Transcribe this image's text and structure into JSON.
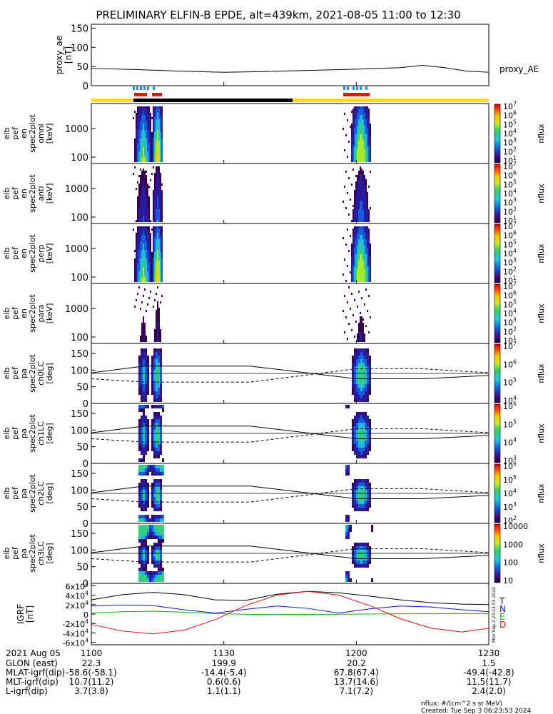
{
  "title": "PRELIMINARY ELFIN-B EPDE, alt=439km, 2021-08-05 11:00 to 12:30",
  "footer": {
    "units": "nflux: #/(cm^2 s sr MeV)",
    "created": "Created: Tue Sep  3 06:23:53 2024",
    "side_stamp": "Mon Sep  2 23:23:53 2024"
  },
  "colors": {
    "ae_line": "#000000",
    "bar_yellow": "#ffdd00",
    "bar_black": "#000000",
    "sci_blue": "#1e90ff",
    "sci_red": "#ee1111",
    "bz_black": "#000000",
    "bx_blue": "#1010dd",
    "by_green": "#10b010",
    "bt_red": "#dd1010"
  },
  "time_axis": {
    "tick_labels": [
      "1100",
      "1130",
      "1200",
      "1230"
    ]
  },
  "info_rows": [
    {
      "label": "2021 Aug 05",
      "values": [
        "1100",
        "1130",
        "1200",
        "1230"
      ]
    },
    {
      "label": "GLON (east)",
      "values": [
        "22.3",
        "199.9",
        "20.2",
        "1.5"
      ]
    },
    {
      "label": "MLAT-igrf(dip)",
      "values": [
        "-58.6(-58.1)",
        "-14.4(-5.4)",
        "67.8(67.4)",
        "-49.4(-42.8)"
      ]
    },
    {
      "label": "MLT-igrf(dip)",
      "values": [
        "10.7(11.2)",
        "0.6(0.6)",
        "13.7(14.6)",
        "11.5(11.7)"
      ]
    },
    {
      "label": "L-igrf(dip)",
      "values": [
        "3.7(3.8)",
        "1.1(1.1)",
        "7.1(7.2)",
        "2.4(2.0)"
      ]
    }
  ],
  "chart_data": [
    {
      "type": "line",
      "panel": "proxy_ae",
      "ylabel": [
        "proxy_ae",
        "[nT]"
      ],
      "legend": "proxy_AE",
      "ylim": [
        0,
        160
      ],
      "yticks": [
        "0",
        "50",
        "100",
        "150"
      ],
      "x_minutes": [
        0,
        10,
        20,
        30,
        40,
        50,
        60,
        70,
        75,
        80,
        85,
        90
      ],
      "values": [
        45,
        42,
        38,
        35,
        37,
        40,
        43,
        47,
        53,
        47,
        38,
        35
      ]
    },
    {
      "type": "heatmap",
      "panel": "en_spec_omni",
      "ylabel": [
        "elb",
        "pef",
        "en",
        "spec2plot",
        "omni",
        "[keV]"
      ],
      "yticks": [
        "100",
        "1000"
      ],
      "zlabel": "nflux",
      "zticks": [
        "10^1",
        "10^2",
        "10^3",
        "10^4",
        "10^5",
        "10^6",
        "10^7"
      ]
    },
    {
      "type": "heatmap",
      "panel": "en_spec_anti",
      "ylabel": [
        "elb",
        "pef",
        "en",
        "spec2plot",
        "anti",
        "[keV]"
      ],
      "yticks": [
        "100",
        "1000"
      ],
      "zlabel": "nflux",
      "zticks": [
        "10^1",
        "10^2",
        "10^3",
        "10^4",
        "10^5",
        "10^6",
        "10^7"
      ]
    },
    {
      "type": "heatmap",
      "panel": "en_spec_perp",
      "ylabel": [
        "elb",
        "pef",
        "en",
        "spec2plot",
        "perp",
        "[keV]"
      ],
      "yticks": [
        "100",
        "1000"
      ],
      "zlabel": "nflux",
      "zticks": [
        "10^1",
        "10^2",
        "10^3",
        "10^4",
        "10^5",
        "10^6",
        "10^7"
      ]
    },
    {
      "type": "heatmap",
      "panel": "en_spec_para",
      "ylabel": [
        "elb",
        "pef",
        "en",
        "spec2plot",
        "para",
        "[keV]"
      ],
      "yticks": [
        "100",
        "1000"
      ],
      "zlabel": "nflux",
      "zticks": [
        "10^1",
        "10^2",
        "10^3",
        "10^4",
        "10^5",
        "10^6",
        "10^7"
      ]
    },
    {
      "type": "heatmap",
      "panel": "pa_spec_ch0LC",
      "ylabel": [
        "elb",
        "pef",
        "pa",
        "spec2plot",
        "ch0LC",
        "[deg]"
      ],
      "ylim": [
        0,
        180
      ],
      "yticks": [
        "0",
        "50",
        "100",
        "150"
      ],
      "zlabel": "nflux",
      "zticks": [
        "10^4",
        "10^5",
        "10^6",
        "10^7"
      ]
    },
    {
      "type": "heatmap",
      "panel": "pa_spec_ch1LC",
      "ylabel": [
        "elb",
        "pef",
        "pa",
        "spec2plot",
        "ch1LC",
        "[deg]"
      ],
      "ylim": [
        0,
        180
      ],
      "yticks": [
        "0",
        "50",
        "100",
        "150"
      ],
      "zlabel": "nflux",
      "zticks": [
        "10^3",
        "10^4",
        "10^5",
        "10^6"
      ]
    },
    {
      "type": "heatmap",
      "panel": "pa_spec_ch2LC",
      "ylabel": [
        "elb",
        "pef",
        "pa",
        "spec2plot",
        "ch2LC",
        "[deg]"
      ],
      "ylim": [
        0,
        180
      ],
      "yticks": [
        "0",
        "50",
        "100",
        "150"
      ],
      "zlabel": "nflux",
      "zticks": [
        "10^2",
        "10^3",
        "10^4",
        "10^5",
        "10^6"
      ]
    },
    {
      "type": "heatmap",
      "panel": "pa_spec_ch3LC",
      "ylabel": [
        "elb",
        "pef",
        "pa",
        "spec2plot",
        "ch3LC",
        "[deg]"
      ],
      "ylim": [
        0,
        180
      ],
      "yticks": [
        "0",
        "50",
        "100",
        "150"
      ],
      "zlabel": "nflux",
      "zticks": [
        "10",
        "100",
        "1000",
        "10000"
      ]
    },
    {
      "type": "line",
      "panel": "igrf",
      "ylabel": [
        "IGRF",
        "[nT]"
      ],
      "ylim": [
        -65000,
        65000
      ],
      "yticks": [
        "-6x10^4",
        "-4x10^4",
        "-2x10^4",
        "0",
        "2x10^4",
        "4x10^4",
        "6x10^4"
      ],
      "legend_letters": [
        "T",
        "N",
        "E",
        "D"
      ],
      "x_minutes": [
        0,
        7,
        14,
        21,
        28,
        35,
        42,
        49,
        56,
        63,
        70,
        77,
        84,
        90
      ],
      "series": [
        {
          "name": "T",
          "values": [
            30000,
            41000,
            46000,
            41000,
            30000,
            29000,
            42000,
            48000,
            45000,
            38000,
            30000,
            24000,
            21000,
            20000
          ]
        },
        {
          "name": "N",
          "values": [
            17000,
            19000,
            18000,
            9000,
            2000,
            10000,
            17000,
            12000,
            2000,
            11000,
            17000,
            15000,
            9000,
            5000
          ]
        },
        {
          "name": "E",
          "values": [
            2000,
            5000,
            6000,
            4000,
            1000,
            -500,
            -1000,
            -800,
            -300,
            0,
            500,
            800,
            900,
            1000
          ]
        },
        {
          "name": "D",
          "values": [
            -22000,
            -36000,
            -42000,
            -34000,
            -12000,
            18000,
            40000,
            48000,
            40000,
            18000,
            -10000,
            -30000,
            -38000,
            -30000
          ]
        }
      ]
    }
  ]
}
